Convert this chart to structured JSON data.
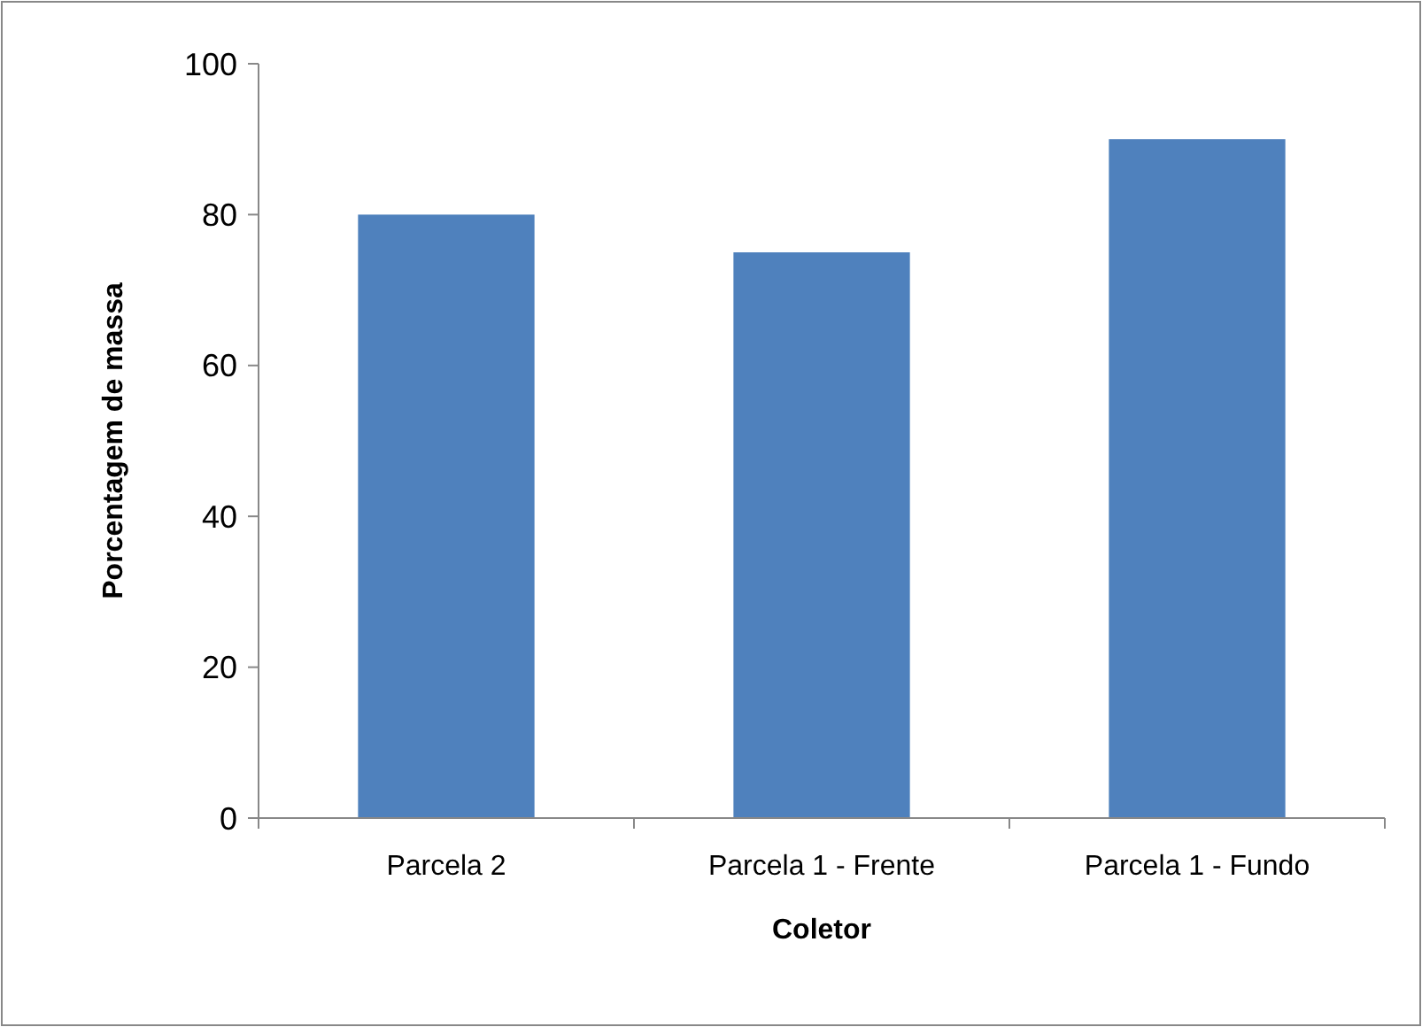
{
  "chart_data": {
    "type": "bar",
    "xlabel": "Coletor",
    "ylabel": "Porcentagem de massa",
    "categories": [
      "Parcela 2",
      "Parcela 1 - Frente",
      "Parcela 1 - Fundo"
    ],
    "values": [
      80,
      75,
      90
    ],
    "color": "#4f81bd",
    "ylim": [
      0,
      100
    ],
    "yticks": [
      0,
      20,
      40,
      60,
      80,
      100
    ],
    "grid": false
  }
}
